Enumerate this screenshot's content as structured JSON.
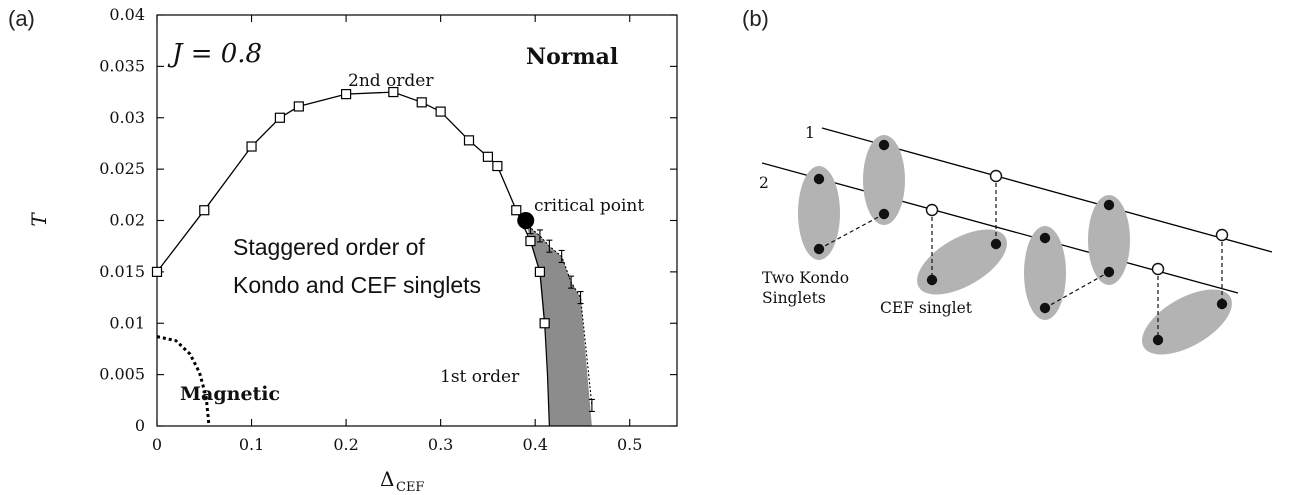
{
  "panel_labels": {
    "a": "(a)",
    "b": "(b)"
  },
  "chart_data": {
    "type": "scatter",
    "xlabel": "Δ",
    "xlabel_sub": "CEF",
    "ylabel": "T",
    "xlim": [
      0,
      0.55
    ],
    "ylim": [
      0,
      0.04
    ],
    "x_ticks": [
      0,
      0.1,
      0.2,
      0.3,
      0.4,
      0.5
    ],
    "x_tick_labels": [
      "0",
      "0.1",
      "0.2",
      "0.3",
      "0.4",
      "0.5"
    ],
    "y_ticks": [
      0,
      0.005,
      0.01,
      0.015,
      0.02,
      0.025,
      0.03,
      0.035,
      0.04
    ],
    "y_tick_labels": [
      "0",
      "0.005",
      "0.01",
      "0.015",
      "0.02",
      "0.025",
      "0.03",
      "0.035",
      "0.04"
    ],
    "series": [
      {
        "marker": "open-square",
        "line": "solid",
        "points": [
          [
            0.0,
            0.015
          ],
          [
            0.05,
            0.021
          ],
          [
            0.1,
            0.0272
          ],
          [
            0.13,
            0.03
          ],
          [
            0.15,
            0.0311
          ],
          [
            0.2,
            0.0323
          ],
          [
            0.25,
            0.0325
          ],
          [
            0.28,
            0.0315
          ],
          [
            0.3,
            0.0306
          ],
          [
            0.33,
            0.0278
          ],
          [
            0.35,
            0.0262
          ],
          [
            0.36,
            0.0253
          ],
          [
            0.38,
            0.021
          ],
          [
            0.395,
            0.018
          ],
          [
            0.405,
            0.015
          ],
          [
            0.41,
            0.01
          ]
        ]
      },
      {
        "marker": "errorbar",
        "line": "dotted",
        "points": [
          [
            0.39,
            0.0198
          ],
          [
            0.395,
            0.0193
          ],
          [
            0.405,
            0.0185
          ],
          [
            0.415,
            0.0175
          ],
          [
            0.428,
            0.0165
          ],
          [
            0.438,
            0.014
          ],
          [
            0.448,
            0.0125
          ],
          [
            0.46,
            0.002
          ]
        ]
      }
    ],
    "critical_point": [
      0.39,
      0.02
    ],
    "magnetic_boundary": [
      [
        0.0,
        0.0087
      ],
      [
        0.02,
        0.0083
      ],
      [
        0.035,
        0.007
      ],
      [
        0.045,
        0.0052
      ],
      [
        0.052,
        0.0028
      ],
      [
        0.055,
        0.0
      ]
    ],
    "annotations": {
      "j_label": "J = 0.8",
      "normal": "Normal",
      "second_order": "2nd order",
      "critical_point": "critical point",
      "staggered_line1": "Staggered order of",
      "staggered_line2": "Kondo and CEF singlets",
      "first_order": "1st order",
      "magnetic": "Magnetic"
    }
  },
  "diagram": {
    "line1_label": "1",
    "line2_label": "2",
    "kondo_label_line1": "Two Kondo",
    "kondo_label_line2": "Singlets",
    "cef_label": "CEF singlet",
    "colors": {
      "ellipse": "#b3b3b3",
      "dot": "#111111"
    }
  }
}
